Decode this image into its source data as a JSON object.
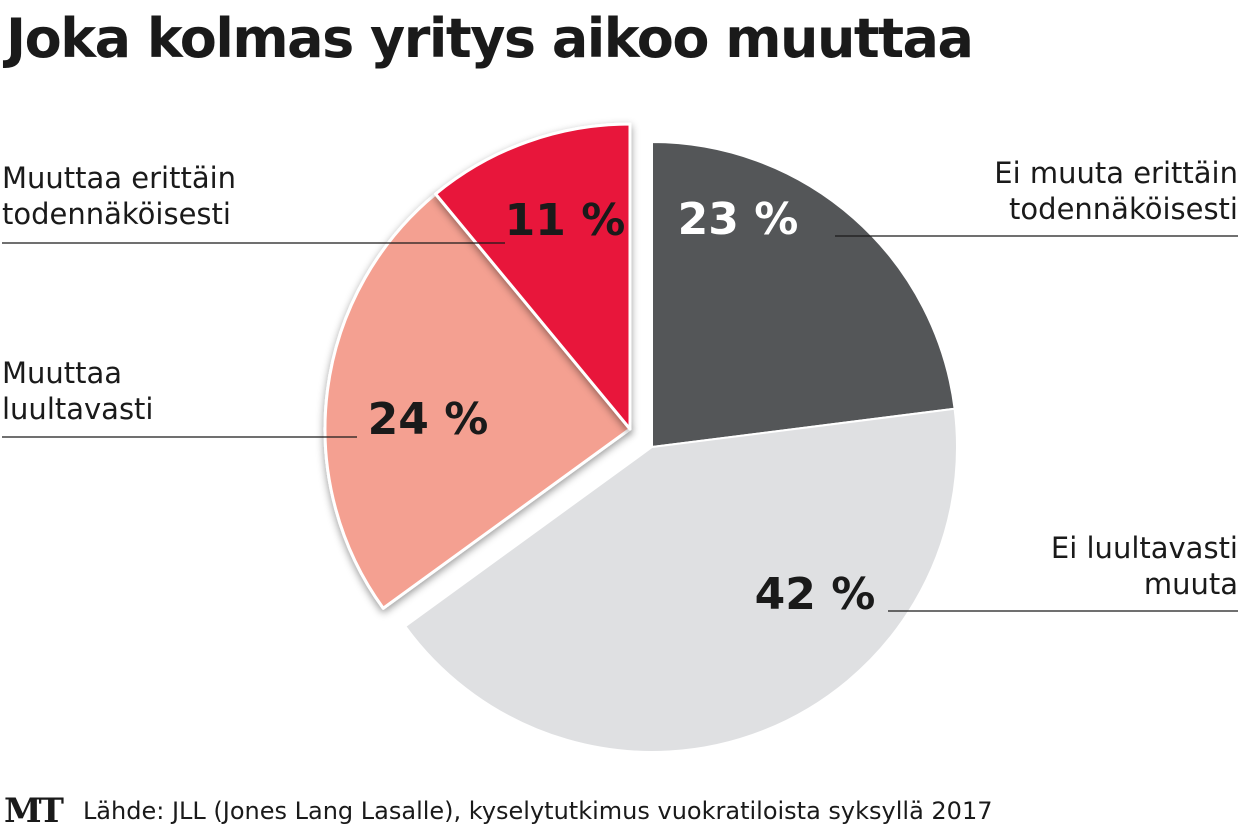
{
  "title": "Joka kolmas yritys aikoo muuttaa",
  "chart_data": {
    "type": "pie",
    "title": "Joka kolmas yritys aikoo muuttaa",
    "slices": [
      {
        "label_lines": [
          "Ei muuta erittäin",
          "todennäköisesti"
        ],
        "value": 23,
        "value_label": "23 %",
        "color": "#545658",
        "text_color": "#ffffff",
        "exploded": false
      },
      {
        "label_lines": [
          "Ei luultavasti",
          "muuta"
        ],
        "value": 42,
        "value_label": "42 %",
        "color": "#dfe0e2",
        "text_color": "#1a1a1a",
        "exploded": false
      },
      {
        "label_lines": [
          "Muuttaa",
          "luultavasti"
        ],
        "value": 24,
        "value_label": "24 %",
        "color": "#f4a091",
        "text_color": "#1a1a1a",
        "exploded": true
      },
      {
        "label_lines": [
          "Muuttaa erittäin",
          "todennäköisesti"
        ],
        "value": 11,
        "value_label": "11 %",
        "color": "#e8163a",
        "text_color": "#1a1a1a",
        "exploded": true
      }
    ]
  },
  "footer": {
    "logo": "MT",
    "source": "Lähde: JLL (Jones Lang Lasalle), kyselytutkimus vuokratiloista syksyllä 2017"
  }
}
